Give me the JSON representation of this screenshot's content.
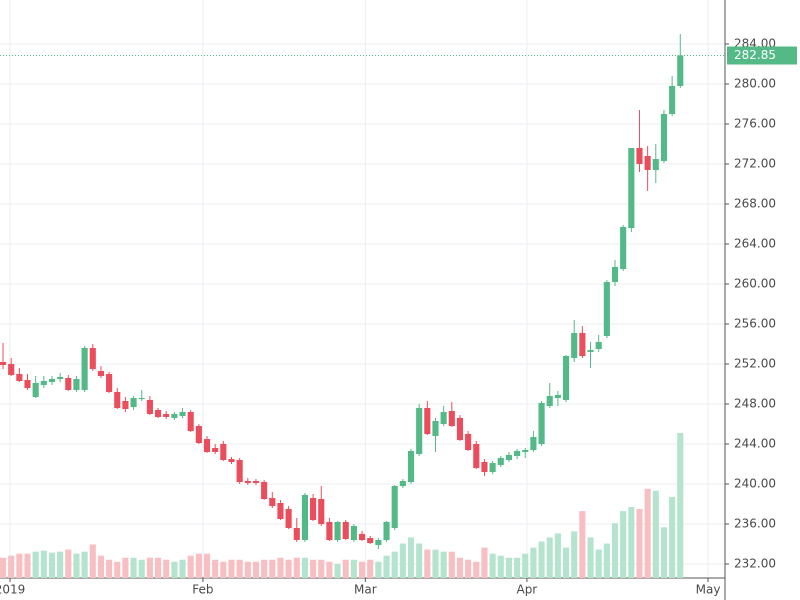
{
  "chart_data": {
    "type": "candlestick",
    "x": [
      0,
      1,
      2,
      3,
      4,
      5,
      6,
      7,
      8,
      9,
      10,
      11,
      12,
      13,
      14,
      15,
      16,
      17,
      18,
      19,
      20,
      21,
      22,
      23,
      24,
      25,
      26,
      27,
      28,
      29,
      30,
      31,
      32,
      33,
      34,
      35,
      36,
      37,
      38,
      39,
      40,
      41,
      42,
      43,
      44,
      45,
      46,
      47,
      48,
      49,
      50,
      51,
      52,
      53,
      54,
      55,
      56,
      57,
      58,
      59,
      60,
      61,
      62,
      63,
      64,
      65,
      66,
      67,
      68,
      69,
      70,
      71,
      72,
      73,
      74,
      75,
      76,
      77,
      78,
      79,
      80,
      81,
      82,
      83
    ],
    "open": [
      252.2,
      252,
      251,
      250.4,
      248.7,
      249.9,
      250.2,
      250.5,
      250.6,
      249.4,
      249.4,
      253.6,
      251.3,
      251,
      249.2,
      248.3,
      247.7,
      248.5,
      248.4,
      247.4,
      247,
      246.6,
      246.8,
      247.2,
      245.8,
      244.5,
      243.6,
      244,
      242.5,
      242.4,
      240.3,
      240.3,
      240.2,
      238.6,
      238.1,
      237.5,
      235.6,
      234.4,
      238.6,
      238.5,
      236.2,
      234.4,
      236.2,
      234.4,
      235,
      234.6,
      233.9,
      234.4,
      235.6,
      239.8,
      240.2,
      243,
      247.6,
      244.8,
      246,
      247.3,
      246.6,
      245,
      244,
      242.2,
      241.2,
      241.9,
      242.4,
      242.8,
      243.2,
      243.4,
      244,
      247.8,
      248.6,
      248.4,
      252.6,
      255.1,
      253.2,
      253.5,
      254.8,
      260.2,
      261.5,
      265.6,
      273.6,
      272.8,
      271.4,
      272.3,
      277,
      279.8
    ],
    "high": [
      254.1,
      252.6,
      251.6,
      251,
      250.8,
      250.8,
      250.8,
      251.1,
      250.9,
      250.8,
      253.8,
      254,
      251.8,
      251.2,
      249.6,
      248.7,
      248.8,
      249.4,
      248.8,
      247.6,
      247.3,
      247.2,
      247.6,
      247.4,
      246,
      244.8,
      244,
      244.3,
      242.7,
      242.6,
      240.6,
      240.5,
      240.4,
      239.2,
      238.4,
      237.8,
      236.6,
      239.1,
      239,
      239.8,
      236.6,
      236.3,
      236.4,
      236,
      235.3,
      234.8,
      234.6,
      236.3,
      239.9,
      240.5,
      243.5,
      248,
      248.3,
      246.6,
      247.8,
      248.2,
      246.9,
      245.3,
      244.3,
      242.5,
      242.3,
      242.8,
      243.2,
      243.5,
      243.6,
      245.3,
      248.3,
      250.1,
      249.3,
      252.9,
      256.4,
      255.8,
      254.2,
      254.9,
      260.4,
      262.4,
      265.9,
      273.6,
      277.4,
      273.8,
      274,
      277.4,
      280.8,
      285
    ],
    "low": [
      251.5,
      250.8,
      250.2,
      249.4,
      248.6,
      249.6,
      249.9,
      250.2,
      249.3,
      249.2,
      249.2,
      251.3,
      250.6,
      249.1,
      247.5,
      247.2,
      247.4,
      248.3,
      246.9,
      246.6,
      246.5,
      246.4,
      246.6,
      245.2,
      244,
      243.1,
      243,
      242.3,
      242,
      240,
      239.9,
      239.9,
      238.4,
      237.6,
      236.4,
      235.5,
      234.2,
      234.2,
      236.3,
      235.8,
      234.3,
      234.2,
      234.4,
      234.2,
      234.3,
      234,
      233.5,
      234.2,
      235.4,
      239.6,
      240,
      242.8,
      244.9,
      243.2,
      245.8,
      245.7,
      244.3,
      243.3,
      241.5,
      240.8,
      241,
      241.7,
      242.2,
      242.5,
      242.6,
      243.2,
      243.8,
      247.6,
      247.8,
      248.2,
      252.2,
      252.6,
      251.6,
      253.2,
      254.6,
      259.8,
      261.3,
      265.2,
      271.2,
      269.3,
      270.1,
      272.1,
      276.8,
      279.6
    ],
    "close": [
      251.9,
      250.9,
      250.3,
      249.6,
      250.1,
      250.3,
      250.5,
      250.7,
      249.4,
      250.5,
      253.6,
      251.5,
      250.8,
      249.2,
      247.6,
      247.5,
      248.6,
      248.6,
      247,
      246.7,
      246.7,
      247,
      247.2,
      245.3,
      244.1,
      243.2,
      243.2,
      242.4,
      242.2,
      240.2,
      240.1,
      240.1,
      238.5,
      237.8,
      236.5,
      235.6,
      234.4,
      238.9,
      236.4,
      236,
      234.4,
      236.2,
      234.5,
      235.8,
      234.4,
      234.1,
      234.4,
      236.2,
      239.8,
      240.3,
      243.3,
      247.6,
      245,
      246.3,
      247.2,
      245.8,
      244.4,
      243.4,
      241.6,
      241.2,
      242.1,
      242.6,
      242.9,
      243.3,
      243.4,
      244.7,
      248.1,
      248.8,
      248.9,
      252.8,
      255.1,
      252.8,
      253.4,
      254.2,
      260.2,
      261.7,
      265.7,
      273.6,
      272,
      271.4,
      272.5,
      277,
      279.8,
      282.85
    ],
    "volume": [
      20,
      22,
      24,
      24,
      26,
      27,
      25,
      26,
      28,
      24,
      26,
      33,
      22,
      18,
      16,
      20,
      20,
      18,
      20,
      20,
      18,
      16,
      18,
      22,
      24,
      24,
      18,
      16,
      18,
      18,
      16,
      16,
      18,
      18,
      20,
      18,
      20,
      20,
      18,
      18,
      16,
      14,
      18,
      18,
      16,
      18,
      16,
      22,
      26,
      34,
      40,
      34,
      28,
      28,
      26,
      26,
      20,
      18,
      16,
      30,
      24,
      22,
      20,
      20,
      24,
      30,
      36,
      40,
      44,
      30,
      46,
      66,
      40,
      28,
      34,
      54,
      66,
      70,
      68,
      88,
      86,
      50,
      80,
      143
    ],
    "up_color": "#53b987",
    "down_color": "#eb4d5c",
    "volume_up_color": "#b4e4cd",
    "volume_down_color": "#f8bfc3",
    "ylim": [
      230.6,
      288.4
    ],
    "yticks": [
      {
        "value": 232,
        "label": "232.00"
      },
      {
        "value": 236,
        "label": "236.00"
      },
      {
        "value": 240,
        "label": "240.00"
      },
      {
        "value": 244,
        "label": "244.00"
      },
      {
        "value": 248,
        "label": "248.00"
      },
      {
        "value": 252,
        "label": "252.00"
      },
      {
        "value": 256,
        "label": "256.00"
      },
      {
        "value": 260,
        "label": "260.00"
      },
      {
        "value": 264,
        "label": "264.00"
      },
      {
        "value": 268,
        "label": "268.00"
      },
      {
        "value": 272,
        "label": "272.00"
      },
      {
        "value": 276,
        "label": "276.00"
      },
      {
        "value": 280,
        "label": "280.00"
      },
      {
        "value": 284,
        "label": "284.00"
      }
    ],
    "xlim": [
      -0.37,
      88.48
    ],
    "xticks": [
      {
        "value": 0.86,
        "label": "2019"
      },
      {
        "value": 24.5,
        "label": "Feb"
      },
      {
        "value": 44.4,
        "label": "Mar"
      },
      {
        "value": 64.2,
        "label": "Apr"
      },
      {
        "value": 86.4,
        "label": "May"
      }
    ],
    "last_price": {
      "value": 282.85,
      "label": "282.85"
    },
    "grid": true
  }
}
